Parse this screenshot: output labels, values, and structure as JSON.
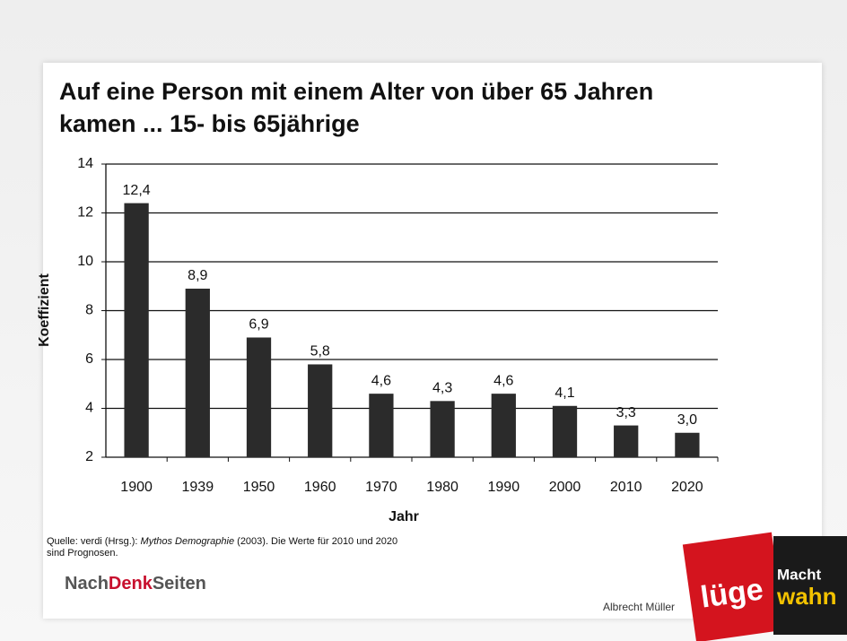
{
  "chart_data": {
    "type": "bar",
    "title": [
      "Auf eine Person mit einem Alter von über 65 Jahren",
      "kamen ... 15- bis 65jährige"
    ],
    "x_label": "Jahr",
    "y_label": "Koeffizient",
    "categories": [
      "1900",
      "1939",
      "1950",
      "1960",
      "1970",
      "1980",
      "1990",
      "2000",
      "2010",
      "2020"
    ],
    "values": [
      12.4,
      8.9,
      6.9,
      5.8,
      4.6,
      4.3,
      4.6,
      4.1,
      3.3,
      3.0
    ],
    "value_labels": [
      "12,4",
      "8,9",
      "6,9",
      "5,8",
      "4,6",
      "4,3",
      "4,6",
      "4,1",
      "3,3",
      "3,0"
    ],
    "color": "#2b2b2b",
    "ylim": [
      2,
      14
    ],
    "yticks": [
      2,
      4,
      6,
      8,
      10,
      12,
      14
    ],
    "grid": true
  },
  "source": {
    "prefix": "Quelle: verdi (Hrsg.): ",
    "title": "Mythos Demographie",
    "suffix": " (2003). Die Werte für 2010 und 2020",
    "line2": "sind Prognosen."
  },
  "logo": {
    "part1": "Nach",
    "part2": "Denk",
    "part3": "Seiten"
  },
  "author": "Albrecht Müller",
  "books": [
    {
      "title": [
        "lüge"
      ]
    },
    {
      "title": [
        "Macht",
        "wahn"
      ]
    }
  ]
}
